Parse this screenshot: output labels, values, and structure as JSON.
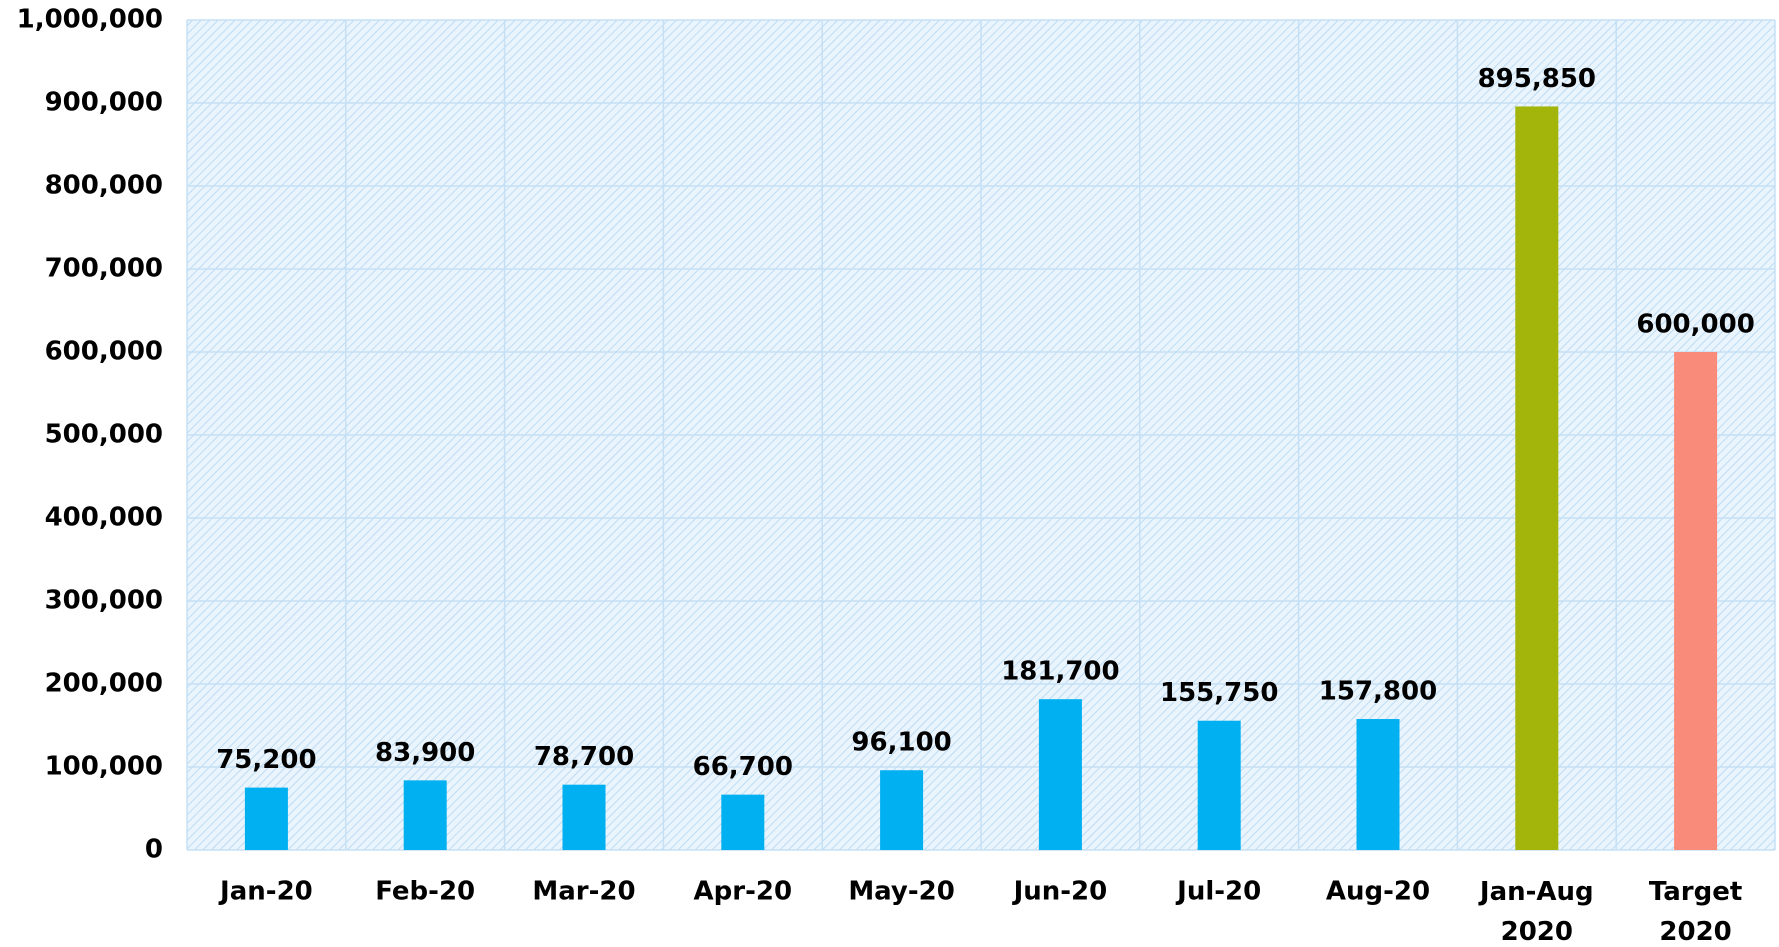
{
  "chart_data": {
    "type": "bar",
    "categories": [
      "Jan-20",
      "Feb-20",
      "Mar-20",
      "Apr-20",
      "May-20",
      "Jun-20",
      "Jul-20",
      "Aug-20",
      "Jan-Aug\n2020",
      "Target\n2020"
    ],
    "values": [
      75200,
      83900,
      78700,
      66700,
      96100,
      181700,
      155750,
      157800,
      895850,
      600000
    ],
    "value_labels": [
      "75,200",
      "83,900",
      "78,700",
      "66,700",
      "96,100",
      "181,700",
      "155,750",
      "157,800",
      "895,850",
      "600,000"
    ],
    "colors": [
      "#00b0f0",
      "#00b0f0",
      "#00b0f0",
      "#00b0f0",
      "#00b0f0",
      "#00b0f0",
      "#00b0f0",
      "#00b0f0",
      "#a3b40a",
      "#f98b7a"
    ],
    "ylim": [
      0,
      1000000
    ],
    "yticks": [
      0,
      {
        "value": 100000,
        "label": "100,000"
      },
      {
        "value": 200000,
        "label": "200,000"
      },
      {
        "value": 300000,
        "label": "300,000"
      },
      {
        "value": 400000,
        "label": "400,000"
      },
      {
        "value": 500000,
        "label": "500,000"
      },
      {
        "value": 600000,
        "label": "600,000"
      },
      {
        "value": 700000,
        "label": "700,000"
      },
      {
        "value": 800000,
        "label": "800,000"
      },
      {
        "value": 900000,
        "label": "900,000"
      },
      {
        "value": 1000000,
        "label": "1,000,000"
      }
    ],
    "grid": true
  }
}
